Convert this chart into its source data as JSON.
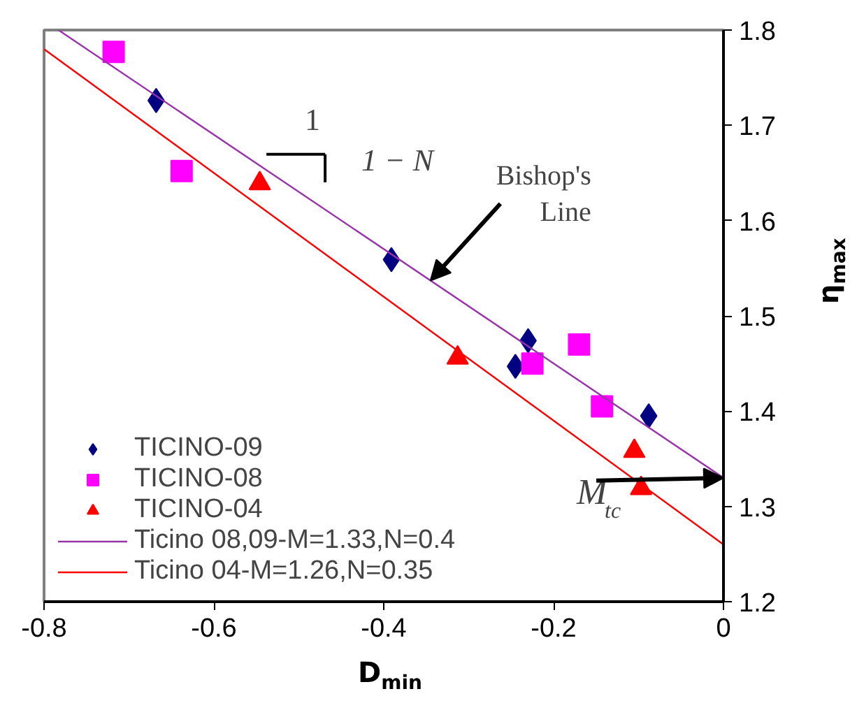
{
  "chart_data": {
    "type": "scatter",
    "xlabel": "D$_{min}$",
    "ylabel": "η$_{max}$",
    "xlim": [
      -0.8,
      0
    ],
    "ylim": [
      1.2,
      1.8
    ],
    "xticks": [
      -0.8,
      -0.6,
      -0.4,
      -0.2,
      0
    ],
    "yticks": [
      1.2,
      1.3,
      1.4,
      1.5,
      1.6,
      1.7,
      1.8
    ],
    "grid": false,
    "legend": "bottom left",
    "series": [
      {
        "name": "TICINO-09",
        "color": "#000080",
        "marker": "diamond",
        "x": [
          -0.668,
          -0.391,
          -0.23,
          -0.245,
          -0.088
        ],
        "values": [
          1.726,
          1.559,
          1.474,
          1.447,
          1.395
        ]
      },
      {
        "name": "TICINO-08",
        "color": "#ff00ff",
        "marker": "square",
        "x": [
          -0.718,
          -0.638,
          -0.225,
          -0.17,
          -0.143
        ],
        "values": [
          1.777,
          1.652,
          1.45,
          1.47,
          1.405
        ]
      },
      {
        "name": "TICINO-04",
        "color": "#ff0000",
        "marker": "triangle",
        "x": [
          -0.546,
          -0.313,
          -0.105,
          -0.097
        ],
        "values": [
          1.639,
          1.456,
          1.358,
          1.319
        ]
      },
      {
        "name": "Ticino 08,09-M=1.33,N=0.4",
        "type": "line",
        "color": "#9933aa",
        "marker": "none",
        "x": [
          -0.783,
          0
        ],
        "values": [
          1.8,
          1.33
        ]
      },
      {
        "name": "Ticino 04-M=1.26,N=0.35",
        "type": "line",
        "color": "#ff0000",
        "marker": "none",
        "x": [
          -0.8,
          0
        ],
        "values": [
          1.78,
          1.26
        ]
      }
    ],
    "annotations": [
      "1",
      "1 − N",
      {
        "text": "Bishop's Line",
        "x": -0.345,
        "y": 1.537
      },
      {
        "text": "M$_{tc}$",
        "x": 0,
        "y": 1.33
      }
    ]
  }
}
